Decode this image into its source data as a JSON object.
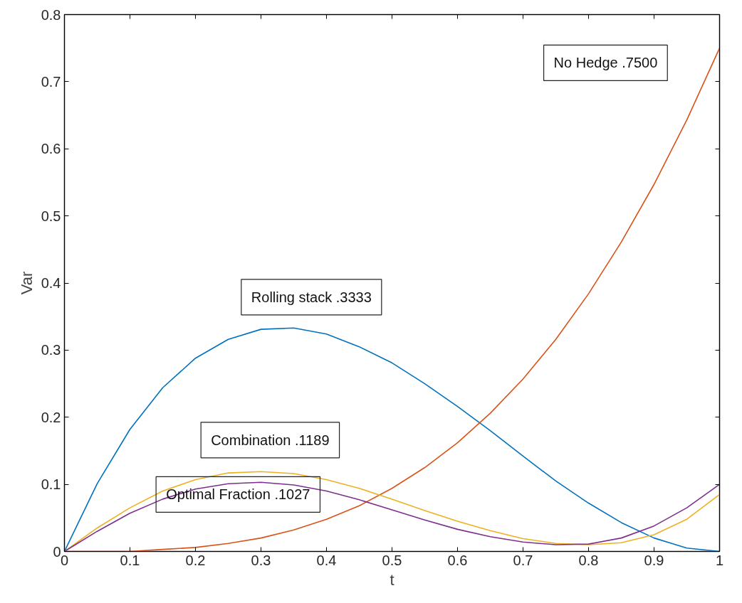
{
  "chart_data": {
    "type": "line",
    "xlabel": "t",
    "ylabel": "Var",
    "x": [
      0,
      0.05,
      0.1,
      0.15,
      0.2,
      0.25,
      0.3,
      0.35,
      0.4,
      0.45,
      0.5,
      0.55,
      0.6,
      0.65,
      0.7,
      0.75,
      0.8,
      0.85,
      0.9,
      0.95,
      1
    ],
    "series": [
      {
        "color": "#0072bd",
        "values": [
          0,
          0.101,
          0.182,
          0.244,
          0.288,
          0.316,
          0.331,
          0.333,
          0.324,
          0.305,
          0.281,
          0.25,
          0.216,
          0.18,
          0.142,
          0.105,
          0.072,
          0.043,
          0.02,
          0.005,
          0
        ]
      },
      {
        "color": "#d95319",
        "values": [
          0,
          0,
          0,
          0.003,
          0.006,
          0.012,
          0.02,
          0.032,
          0.048,
          0.068,
          0.094,
          0.125,
          0.162,
          0.206,
          0.257,
          0.316,
          0.384,
          0.461,
          0.547,
          0.643,
          0.75
        ]
      },
      {
        "color": "#edb120",
        "values": [
          0,
          0.035,
          0.065,
          0.09,
          0.107,
          0.117,
          0.119,
          0.116,
          0.107,
          0.094,
          0.078,
          0.061,
          0.045,
          0.031,
          0.019,
          0.012,
          0.01,
          0.013,
          0.025,
          0.048,
          0.085
        ]
      },
      {
        "color": "#7e2f8e",
        "values": [
          0,
          0.03,
          0.057,
          0.078,
          0.093,
          0.101,
          0.103,
          0.099,
          0.09,
          0.077,
          0.062,
          0.047,
          0.033,
          0.022,
          0.014,
          0.01,
          0.011,
          0.02,
          0.038,
          0.065,
          0.1
        ]
      }
    ],
    "annotations": [
      "No Hedge .7500",
      "Rolling stack .3333",
      "Combination .1189",
      "Optimal Fraction .1027"
    ],
    "xlim": [
      0,
      1
    ],
    "ylim": [
      0,
      0.8
    ],
    "xticks": [
      0,
      0.1,
      0.2,
      0.3,
      0.4,
      0.5,
      0.6,
      0.7,
      0.8,
      0.9,
      1
    ],
    "yticks": [
      0,
      0.1,
      0.2,
      0.3,
      0.4,
      0.5,
      0.6,
      0.7,
      0.8
    ],
    "grid": false,
    "marker": "none",
    "line_style": "solid"
  }
}
